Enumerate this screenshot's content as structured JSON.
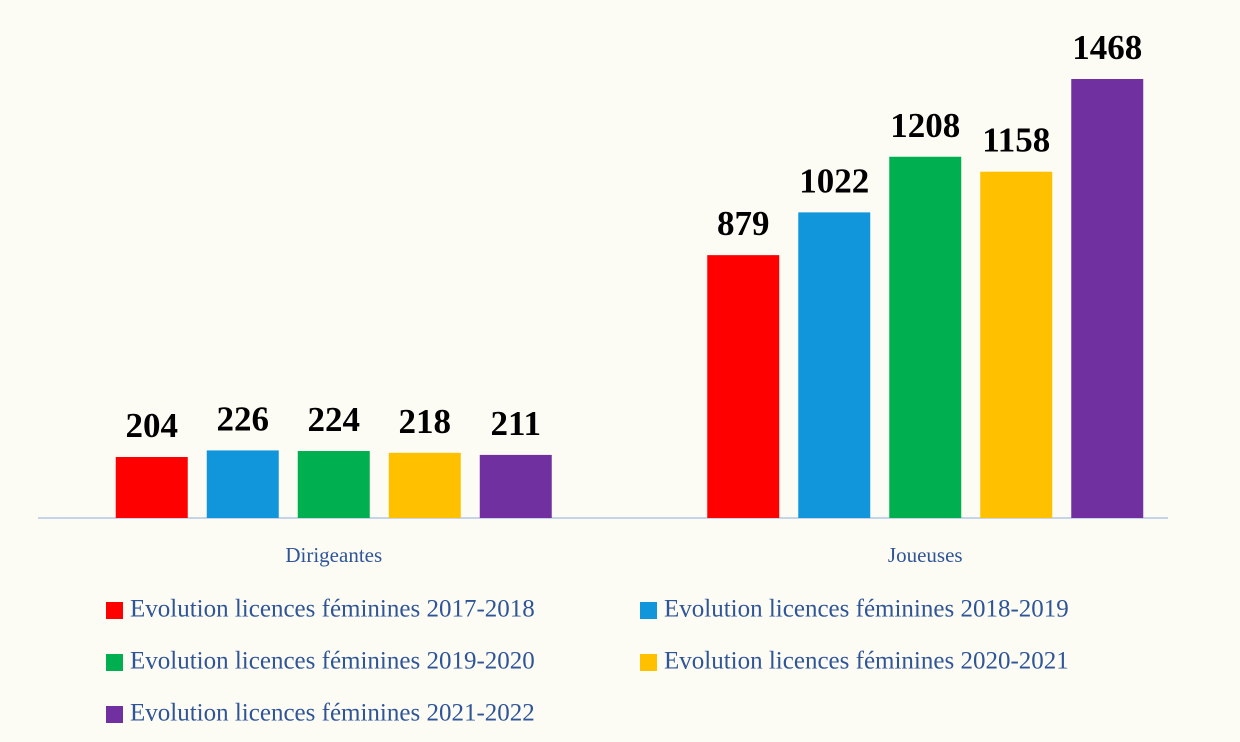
{
  "chart_data": {
    "type": "bar",
    "categories": [
      "Dirigeantes",
      "Joueuses"
    ],
    "series": [
      {
        "name": "Evolution licences féminines 2017-2018",
        "color": "#ff0000",
        "values": [
          204,
          879
        ]
      },
      {
        "name": "Evolution licences féminines 2018-2019",
        "color": "#1296db",
        "values": [
          226,
          1022
        ]
      },
      {
        "name": "Evolution licences féminines 2019-2020",
        "color": "#00b050",
        "values": [
          224,
          1208
        ]
      },
      {
        "name": "Evolution licences féminines 2020-2021",
        "color": "#ffc000",
        "values": [
          218,
          1158
        ]
      },
      {
        "name": "Evolution licences féminines 2021-2022",
        "color": "#7030a0",
        "values": [
          211,
          1468
        ]
      }
    ],
    "legend": "bottom"
  }
}
